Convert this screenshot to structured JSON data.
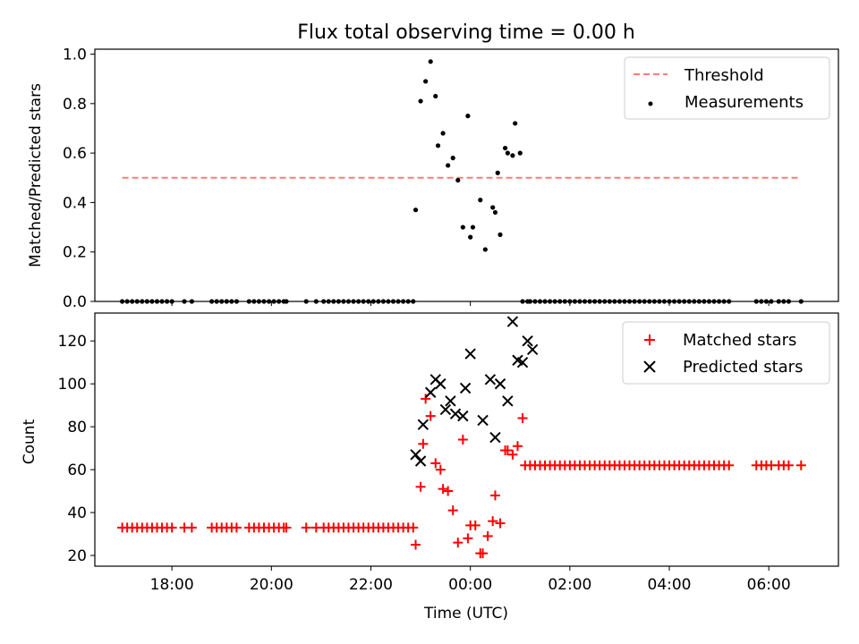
{
  "chart_data": [
    {
      "type": "scatter",
      "title": "Flux total observing time = 0.00 h",
      "xlabel": "",
      "ylabel": "Matched/Predicted stars",
      "xlim": [
        16.45,
        31.4
      ],
      "ylim": [
        0,
        1.02
      ],
      "x_tick_labels": [
        "18:00",
        "20:00",
        "22:00",
        "00:00",
        "02:00",
        "04:00",
        "06:00"
      ],
      "y_ticks": [
        0.0,
        0.2,
        0.4,
        0.6,
        0.8,
        1.0
      ],
      "y_tick_labels": [
        "0.0",
        "0.2",
        "0.4",
        "0.6",
        "0.8",
        "1.0"
      ],
      "legend_position": "top-right",
      "series": [
        {
          "name": "Threshold",
          "style": "dashed-line",
          "color": "#ff7b7b",
          "x": [
            17.0,
            30.65
          ],
          "y": [
            0.5,
            0.5
          ]
        },
        {
          "name": "Measurements",
          "style": "dot",
          "color": "#000000",
          "x": [
            17.0,
            17.1,
            17.2,
            17.3,
            17.4,
            17.5,
            17.6,
            17.7,
            17.8,
            17.9,
            18.0,
            18.25,
            18.4,
            18.8,
            18.9,
            19.0,
            19.1,
            19.2,
            19.3,
            19.55,
            19.65,
            19.75,
            19.85,
            19.95,
            20.05,
            20.15,
            20.25,
            20.3,
            20.7,
            20.9,
            21.05,
            21.15,
            21.25,
            21.35,
            21.45,
            21.55,
            21.65,
            21.75,
            21.85,
            21.95,
            22.05,
            22.15,
            22.25,
            22.35,
            22.45,
            22.55,
            22.65,
            22.75,
            22.85,
            22.9,
            23.0,
            23.1,
            23.2,
            23.3,
            23.35,
            23.45,
            23.55,
            23.65,
            23.75,
            23.85,
            23.95,
            24.0,
            24.05,
            24.2,
            24.3,
            24.45,
            24.5,
            24.55,
            24.6,
            24.7,
            24.75,
            24.85,
            24.9,
            25.0,
            25.05,
            25.15,
            25.2,
            25.3,
            25.4,
            25.5,
            25.6,
            25.7,
            25.8,
            25.9,
            26.0,
            26.1,
            26.2,
            26.3,
            26.4,
            26.5,
            26.6,
            26.7,
            26.8,
            26.9,
            27.0,
            27.1,
            27.2,
            27.3,
            27.4,
            27.5,
            27.6,
            27.7,
            27.8,
            27.9,
            28.0,
            28.1,
            28.2,
            28.3,
            28.4,
            28.5,
            28.6,
            28.7,
            28.8,
            28.9,
            29.0,
            29.1,
            29.2,
            29.75,
            29.85,
            29.95,
            30.05,
            30.2,
            30.3,
            30.4,
            30.65
          ],
          "y": [
            0,
            0,
            0,
            0,
            0,
            0,
            0,
            0,
            0,
            0,
            0,
            0,
            0,
            0,
            0,
            0,
            0,
            0,
            0,
            0,
            0,
            0,
            0,
            0,
            0,
            0,
            0,
            0,
            0,
            0,
            0,
            0,
            0,
            0,
            0,
            0,
            0,
            0,
            0,
            0,
            0,
            0,
            0,
            0,
            0,
            0,
            0,
            0,
            0,
            0.37,
            0.81,
            0.89,
            0.97,
            0.83,
            0.63,
            0.68,
            0.55,
            0.58,
            0.49,
            0.3,
            0.75,
            0.26,
            0.3,
            0.41,
            0.21,
            0.38,
            0.36,
            0.52,
            0.27,
            0.62,
            0.6,
            0.59,
            0.72,
            0.6,
            0,
            0,
            0,
            0,
            0,
            0,
            0,
            0,
            0,
            0,
            0,
            0,
            0,
            0,
            0,
            0,
            0,
            0,
            0,
            0,
            0,
            0,
            0,
            0,
            0,
            0,
            0,
            0,
            0,
            0,
            0,
            0,
            0,
            0,
            0,
            0,
            0,
            0,
            0,
            0,
            0,
            0,
            0,
            0,
            0,
            0,
            0,
            0,
            0,
            0,
            0
          ],
          "__y_sup": [
            0,
            0,
            0,
            0,
            0,
            0,
            0,
            0,
            0,
            0,
            0,
            0,
            0,
            0,
            0,
            0,
            0,
            0,
            0,
            0,
            0,
            0,
            0,
            0,
            0,
            0,
            0,
            0,
            0,
            0,
            0,
            0,
            0,
            0,
            0,
            0,
            0,
            0,
            0,
            0,
            0,
            0,
            0,
            0,
            0,
            0,
            0,
            0,
            0,
            0,
            0,
            0,
            0,
            0,
            0,
            0,
            0,
            0,
            0,
            0,
            0,
            0,
            0,
            0,
            0,
            0,
            0,
            0,
            0,
            0,
            0,
            0,
            0,
            0,
            0,
            0,
            0,
            0,
            0,
            0,
            0,
            0,
            0,
            0,
            0,
            0,
            0,
            0,
            0,
            0,
            0,
            0,
            0,
            0,
            0,
            0,
            0,
            0,
            0,
            0,
            0,
            0,
            0,
            0,
            0,
            0,
            0,
            0,
            0,
            0,
            0,
            0,
            0,
            0,
            0,
            0,
            0,
            0,
            0,
            0,
            0,
            0,
            0,
            0,
            0
          ]
        }
      ]
    },
    {
      "type": "scatter",
      "title": "",
      "xlabel": "Time (UTC)",
      "ylabel": "Count",
      "xlim": [
        16.45,
        31.4
      ],
      "ylim": [
        15,
        133
      ],
      "x_ticks": [
        18,
        20,
        22,
        24,
        26,
        28,
        30
      ],
      "x_tick_labels": [
        "18:00",
        "20:00",
        "22:00",
        "00:00",
        "02:00",
        "04:00",
        "06:00"
      ],
      "y_ticks": [
        20,
        40,
        60,
        80,
        100,
        120
      ],
      "y_tick_labels": [
        "20",
        "40",
        "60",
        "80",
        "100",
        "120"
      ],
      "legend_position": "top-right",
      "series": [
        {
          "name": "Matched stars",
          "style": "plus",
          "color": "#ff0000",
          "x": [
            17.0,
            17.1,
            17.2,
            17.3,
            17.4,
            17.5,
            17.6,
            17.7,
            17.8,
            17.9,
            18.0,
            18.25,
            18.4,
            18.8,
            18.9,
            19.0,
            19.1,
            19.2,
            19.3,
            19.55,
            19.65,
            19.75,
            19.85,
            19.95,
            20.05,
            20.15,
            20.25,
            20.3,
            20.7,
            20.9,
            21.05,
            21.15,
            21.25,
            21.35,
            21.45,
            21.55,
            21.65,
            21.75,
            21.85,
            21.95,
            22.05,
            22.15,
            22.25,
            22.35,
            22.45,
            22.55,
            22.65,
            22.75,
            22.85,
            22.9,
            23.0,
            23.05,
            23.1,
            23.2,
            23.3,
            23.4,
            23.45,
            23.55,
            23.65,
            23.75,
            23.85,
            23.95,
            24.0,
            24.1,
            24.2,
            24.25,
            24.35,
            24.45,
            24.5,
            24.6,
            24.7,
            24.75,
            24.85,
            24.95,
            25.05,
            25.1,
            25.2,
            25.3,
            25.4,
            25.5,
            25.6,
            25.7,
            25.8,
            25.9,
            26.0,
            26.1,
            26.2,
            26.3,
            26.4,
            26.5,
            26.6,
            26.7,
            26.8,
            26.9,
            27.0,
            27.1,
            27.2,
            27.3,
            27.4,
            27.5,
            27.6,
            27.7,
            27.8,
            27.9,
            28.0,
            28.1,
            28.2,
            28.3,
            28.4,
            28.5,
            28.6,
            28.7,
            28.8,
            28.9,
            29.0,
            29.1,
            29.2,
            29.75,
            29.85,
            29.95,
            30.05,
            30.2,
            30.3,
            30.4,
            30.65
          ],
          "y": [
            33,
            33,
            33,
            33,
            33,
            33,
            33,
            33,
            33,
            33,
            33,
            33,
            33,
            33,
            33,
            33,
            33,
            33,
            33,
            33,
            33,
            33,
            33,
            33,
            33,
            33,
            33,
            33,
            33,
            33,
            33,
            33,
            33,
            33,
            33,
            33,
            33,
            33,
            33,
            33,
            33,
            33,
            33,
            33,
            33,
            33,
            33,
            33,
            33,
            25,
            52,
            72,
            93,
            85,
            63,
            60,
            51,
            50,
            41,
            26,
            74,
            28,
            34,
            34,
            21,
            21,
            29,
            36,
            48,
            35,
            69,
            69,
            67,
            71,
            84,
            62,
            62,
            62,
            62,
            62,
            62,
            62,
            62,
            62,
            62,
            62,
            62,
            62,
            62,
            62,
            62,
            62,
            62,
            62,
            62,
            62,
            62,
            62,
            62,
            62,
            62,
            62,
            62,
            62,
            62,
            62,
            62,
            62,
            62,
            62,
            62,
            62,
            62,
            62,
            62,
            62,
            62,
            62,
            62,
            62,
            62,
            62,
            62,
            62,
            62
          ]
        },
        {
          "name": "Predicted stars",
          "style": "x",
          "color": "#000000",
          "x": [
            22.9,
            23.0,
            23.05,
            23.2,
            23.3,
            23.4,
            23.5,
            23.6,
            23.7,
            23.85,
            23.9,
            24.0,
            24.25,
            24.4,
            24.5,
            24.6,
            24.75,
            24.85,
            24.95,
            25.05,
            25.15,
            25.25
          ],
          "y": [
            67,
            64,
            81,
            96,
            102,
            100,
            88,
            92,
            86,
            85,
            98,
            114,
            83,
            102,
            75,
            100,
            92,
            129,
            111,
            110,
            120,
            116
          ],
          "__y_sup": [
            0,
            0,
            0,
            0,
            0,
            0,
            0,
            0,
            0,
            0,
            0,
            0,
            0,
            0,
            0,
            0,
            0,
            0,
            0,
            0,
            0,
            0
          ]
        }
      ]
    }
  ]
}
